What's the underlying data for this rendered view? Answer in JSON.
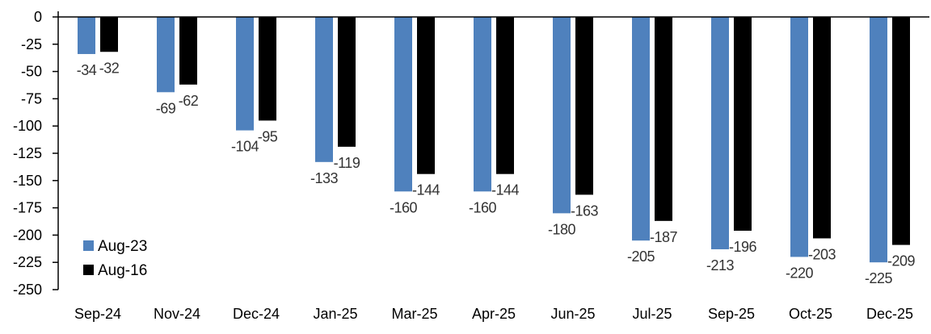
{
  "chart_data": {
    "type": "bar",
    "title": "",
    "xlabel": "",
    "ylabel": "",
    "ylim": [
      -250,
      0
    ],
    "yticks": [
      0,
      -25,
      -50,
      -75,
      -100,
      -125,
      -150,
      -175,
      -200,
      -225,
      -250
    ],
    "grid": false,
    "legend_position": "bottom-left",
    "categories": [
      "Sep-24",
      "Nov-24",
      "Dec-24",
      "Jan-25",
      "Mar-25",
      "Apr-25",
      "Jun-25",
      "Jul-25",
      "Sep-25",
      "Oct-25",
      "Dec-25"
    ],
    "series": [
      {
        "name": "Aug-23",
        "color": "#4f81bd",
        "values": [
          -34,
          -69,
          -104,
          -133,
          -160,
          -160,
          -180,
          -205,
          -213,
          -220,
          -225
        ]
      },
      {
        "name": "Aug-16",
        "color": "#000000",
        "values": [
          -32,
          -62,
          -95,
          -119,
          -144,
          -144,
          -163,
          -187,
          -196,
          -203,
          -209
        ]
      }
    ]
  }
}
